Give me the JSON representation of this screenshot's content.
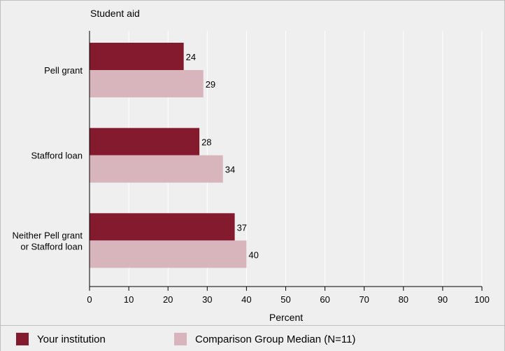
{
  "chart_data": {
    "type": "bar",
    "orientation": "horizontal",
    "title": "Student aid",
    "categories": [
      [
        "Pell grant"
      ],
      [
        "Stafford loan"
      ],
      [
        "Neither Pell grant",
        "or Stafford loan"
      ]
    ],
    "series": [
      {
        "name": "Your institution",
        "values": [
          24,
          28,
          37
        ],
        "color": "#841a2d"
      },
      {
        "name": "Comparison Group Median (N=11)",
        "values": [
          29,
          34,
          40
        ],
        "color": "#d8b4bc"
      }
    ],
    "xlabel": "Percent",
    "xlim": [
      0,
      100
    ],
    "xticks": [
      0,
      10,
      20,
      30,
      40,
      50,
      60,
      70,
      80,
      90,
      100
    ],
    "grid": true,
    "legend_position": "bottom"
  },
  "colors": {
    "background": "#efefef",
    "gridline": "#ffffff",
    "axis": "#000000"
  }
}
